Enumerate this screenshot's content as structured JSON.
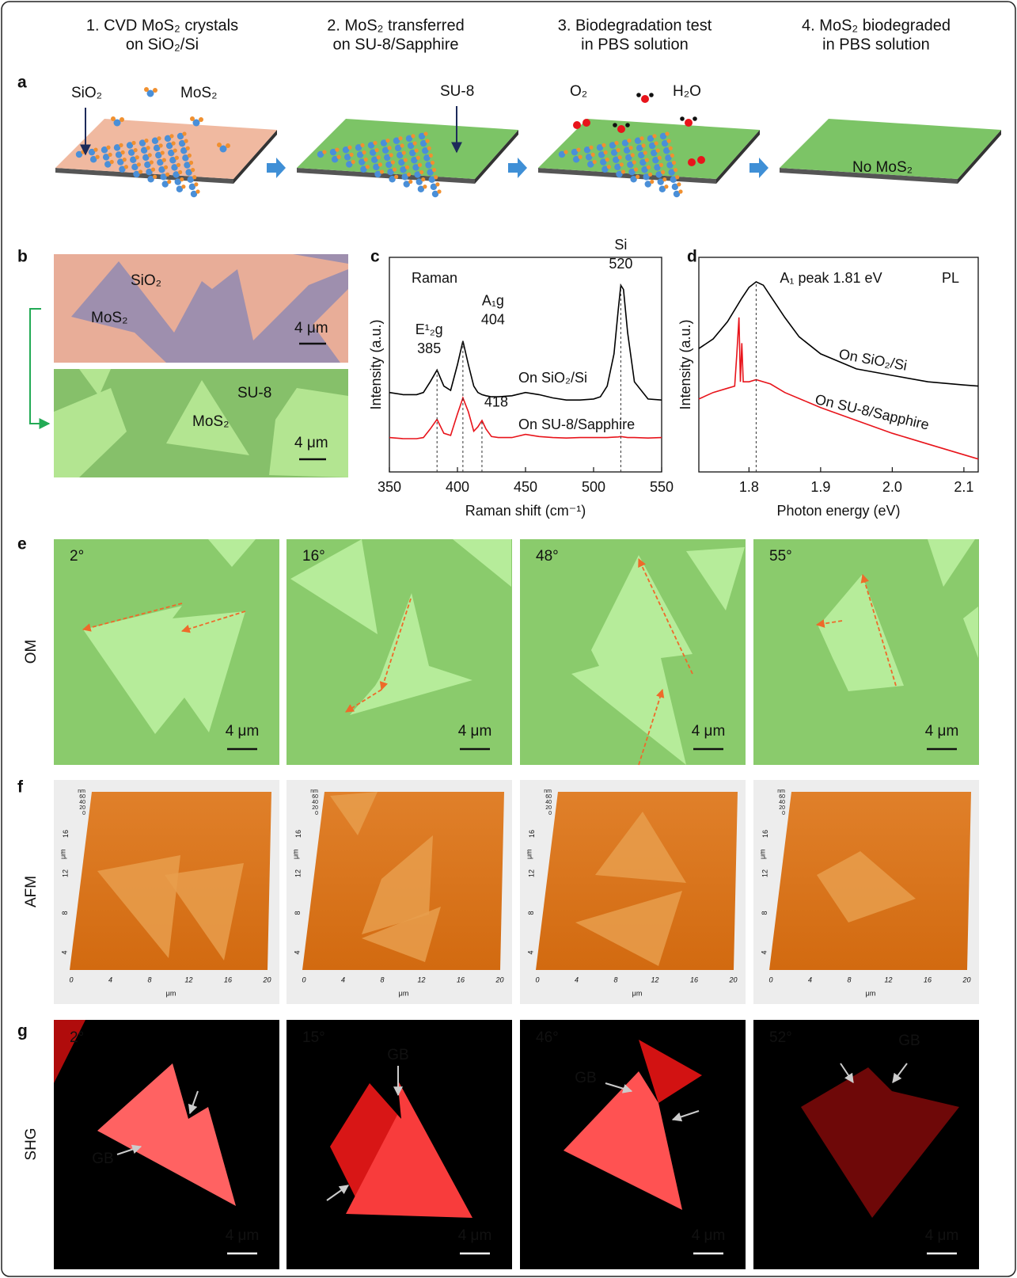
{
  "figure": {
    "steps": [
      [
        "1. CVD MoS₂ crystals",
        "on SiO₂/Si"
      ],
      [
        "2. MoS₂ transferred",
        "on SU-8/Sapphire"
      ],
      [
        "3. Biodegradation test",
        "in PBS solution"
      ],
      [
        "4. MoS₂ biodegraded",
        "in PBS solution"
      ]
    ],
    "panel_letters": [
      "a",
      "b",
      "c",
      "d",
      "e",
      "f",
      "g"
    ],
    "a": {
      "labels": [
        "SiO₂",
        "MoS₂",
        "SU-8",
        "O₂",
        "H₂O",
        "No MoS₂"
      ]
    },
    "b": {
      "top": {
        "substrate": "SiO₂",
        "crystal": "MoS₂",
        "scale": "4 μm"
      },
      "bottom": {
        "substrate": "SU-8",
        "crystal": "MoS₂",
        "scale": "4 μm"
      }
    },
    "e": {
      "row_label": "OM",
      "angles": [
        "2°",
        "16°",
        "48°",
        "55°"
      ],
      "scale": "4 μm"
    },
    "f": {
      "row_label": "AFM",
      "xticks": [
        0,
        4,
        8,
        12,
        16,
        20
      ],
      "yticks": [
        4,
        8,
        12,
        16
      ],
      "zticks": [
        0,
        20,
        40,
        60
      ],
      "unit": "μm",
      "z_unit": "nm"
    },
    "g": {
      "row_label": "SHG",
      "angles": [
        "2°",
        "15°",
        "46°",
        "52°"
      ],
      "marker": "GB",
      "scale": "4 μm"
    }
  },
  "chart_data": [
    {
      "type": "line",
      "title": "Raman",
      "xlabel": "Raman shift (cm⁻¹)",
      "ylabel": "Intensity (a.u.)",
      "xlim": [
        350,
        550
      ],
      "xticks": [
        350,
        400,
        450,
        500,
        550
      ],
      "ylim": [
        0,
        1
      ],
      "series": [
        {
          "name": "On SiO₂/Si",
          "color": "#000000",
          "x": [
            350,
            360,
            370,
            375,
            380,
            385,
            390,
            395,
            400,
            404,
            408,
            412,
            415,
            418,
            421,
            425,
            430,
            440,
            450,
            460,
            470,
            480,
            490,
            500,
            505,
            510,
            515,
            518,
            520,
            522,
            525,
            530,
            540,
            550
          ],
          "values": [
            0.37,
            0.36,
            0.36,
            0.37,
            0.42,
            0.475,
            0.4,
            0.38,
            0.5,
            0.61,
            0.5,
            0.4,
            0.37,
            0.36,
            0.355,
            0.35,
            0.35,
            0.355,
            0.37,
            0.36,
            0.345,
            0.335,
            0.335,
            0.34,
            0.35,
            0.4,
            0.55,
            0.75,
            0.87,
            0.85,
            0.65,
            0.42,
            0.34,
            0.335
          ]
        },
        {
          "name": "On SU-8/Sapphire",
          "color": "#e8141b",
          "x": [
            350,
            360,
            370,
            375,
            380,
            385,
            390,
            395,
            400,
            404,
            408,
            412,
            415,
            418,
            421,
            425,
            430,
            440,
            450,
            460,
            470,
            480,
            490,
            500,
            505,
            510,
            515,
            518,
            520,
            522,
            525,
            530,
            540,
            550
          ],
          "values": [
            0.16,
            0.155,
            0.155,
            0.16,
            0.2,
            0.245,
            0.18,
            0.17,
            0.27,
            0.345,
            0.28,
            0.19,
            0.21,
            0.24,
            0.2,
            0.165,
            0.16,
            0.16,
            0.175,
            0.165,
            0.16,
            0.158,
            0.16,
            0.16,
            0.16,
            0.16,
            0.162,
            0.163,
            0.165,
            0.163,
            0.16,
            0.16,
            0.158,
            0.16
          ]
        }
      ],
      "peaks": [
        {
          "x": 385,
          "label": "E¹₂g"
        },
        {
          "x": 404,
          "label": "A₁g"
        },
        {
          "x": 418
        },
        {
          "x": 520,
          "label": "Si"
        }
      ]
    },
    {
      "type": "line",
      "title": "PL",
      "xlabel": "Photon energy (eV)",
      "ylabel": "Intensity (a.u.)",
      "xlim": [
        1.73,
        2.12
      ],
      "xticks": [
        1.8,
        1.9,
        {
          "value": 2,
          "label": "2.0"
        },
        2.1
      ],
      "ylim": [
        0,
        1
      ],
      "series": [
        {
          "name": "On SiO₂/Si",
          "color": "#000000",
          "x": [
            1.73,
            1.75,
            1.77,
            1.79,
            1.8,
            1.81,
            1.82,
            1.83,
            1.85,
            1.87,
            1.9,
            1.95,
            2.0,
            2.05,
            2.1,
            2.12
          ],
          "values": [
            0.575,
            0.62,
            0.7,
            0.81,
            0.86,
            0.886,
            0.87,
            0.82,
            0.72,
            0.63,
            0.55,
            0.48,
            0.45,
            0.42,
            0.405,
            0.4
          ]
        },
        {
          "name": "On SU-8/Sapphire",
          "color": "#e8141b",
          "x": [
            1.73,
            1.75,
            1.77,
            1.78,
            1.783,
            1.786,
            1.788,
            1.79,
            1.792,
            1.8,
            1.81,
            1.83,
            1.85,
            1.9,
            1.95,
            2.0,
            2.05,
            2.1,
            2.12
          ],
          "values": [
            0.34,
            0.37,
            0.39,
            0.4,
            0.55,
            0.72,
            0.42,
            0.6,
            0.42,
            0.42,
            0.43,
            0.41,
            0.37,
            0.3,
            0.24,
            0.18,
            0.13,
            0.08,
            0.06
          ]
        }
      ],
      "annotation": {
        "x": 1.81,
        "label": "A₁ peak 1.81 eV"
      }
    }
  ]
}
